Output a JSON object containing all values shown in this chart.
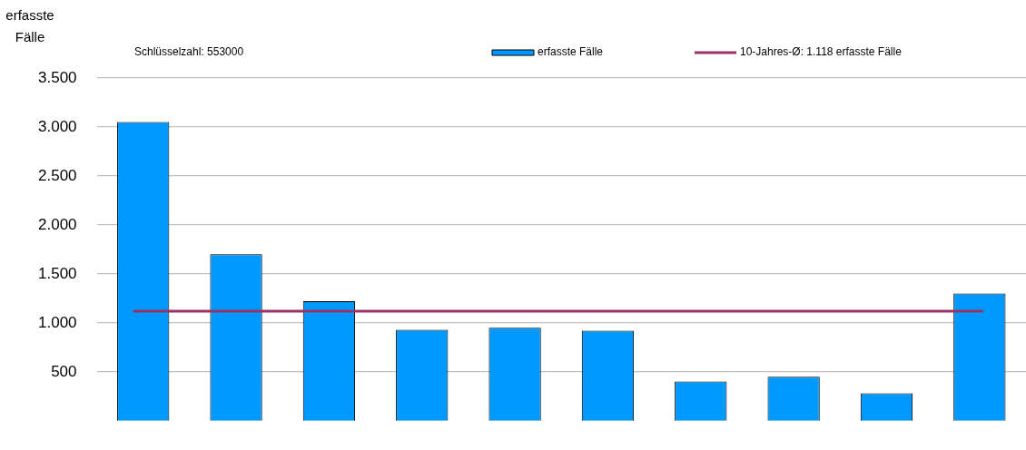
{
  "chart_data": {
    "type": "bar",
    "ylabel": "erfasste Fälle",
    "categories": [
      null,
      null,
      null,
      null,
      null,
      null,
      null,
      null,
      null,
      null
    ],
    "series": [
      {
        "name": "erfasste Fälle",
        "color": "#0099ff",
        "values": [
          3050,
          1700,
          1220,
          930,
          950,
          920,
          400,
          450,
          280,
          1300
        ]
      }
    ],
    "ylim": [
      0,
      3500
    ],
    "yticks": [
      500,
      {
        "value": 1000,
        "label": "1.000"
      },
      {
        "value": 1500,
        "label": "1.500"
      },
      {
        "value": 2000,
        "label": "2.000"
      },
      {
        "value": 2500,
        "label": "2.500"
      },
      {
        "value": 3000,
        "label": "3.000"
      },
      {
        "value": 3500,
        "label": "3.500"
      }
    ],
    "ref_lines": [
      {
        "axis": "y",
        "value": 1118,
        "label": "10-Jahres-Ø: 1.118 erfasste Fälle",
        "color": "#993366"
      }
    ],
    "annotations": [
      "Schlüsselzahl: 553000"
    ],
    "grid": "y",
    "legend": "top",
    "tick_labels": "y"
  }
}
